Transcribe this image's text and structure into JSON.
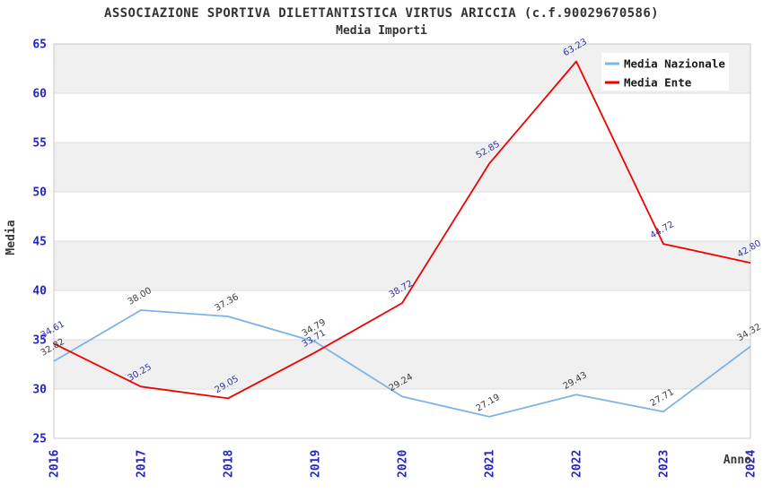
{
  "title": "ASSOCIAZIONE SPORTIVA DILETTANTISTICA VIRTUS ARICCIA (c.f.90029670586)",
  "subtitle": "Media Importi",
  "colors": {
    "background": "#FFFFFF",
    "band": "#F0F0F0",
    "grid": "#DEDEDE",
    "border": "#C9C9C9",
    "tick_label": "#2424C8",
    "axis_title": "#3A3A3A",
    "title_text": "#333333",
    "legend_text": "#1A1A1A",
    "legend_background": "#FFFFFF"
  },
  "chart_data": {
    "type": "line",
    "title": "ASSOCIAZIONE SPORTIVA DILETTANTISTICA VIRTUS ARICCIA (c.f.90029670586)",
    "subtitle": "Media Importi",
    "x": [
      "2016",
      "2017",
      "2018",
      "2019",
      "2020",
      "2021",
      "2022",
      "2023",
      "2024"
    ],
    "xlabel": "Anno",
    "ylabel": "Media",
    "ylim": [
      25,
      65
    ],
    "ytick_step": 5,
    "yticks": [
      "25",
      "30",
      "35",
      "40",
      "45",
      "50",
      "55",
      "60",
      "65"
    ],
    "grid": true,
    "banded_background": true,
    "legend_position": "top-right",
    "series": [
      {
        "name": "Media Nazionale",
        "color": "#7FB3E6",
        "label_color": "#3C3C3C",
        "values": [
          32.82,
          38.0,
          37.36,
          34.79,
          29.24,
          27.19,
          29.43,
          27.71,
          34.32
        ],
        "value_labels": [
          "32.82",
          "38.00",
          "37.36",
          "34.79",
          "29.24",
          "27.19",
          "29.43",
          "27.71",
          "34.32"
        ]
      },
      {
        "name": "Media Ente",
        "color": "#EE0202",
        "label_color": "#3232A8",
        "values": [
          34.61,
          30.25,
          29.05,
          33.71,
          38.72,
          52.85,
          63.23,
          44.72,
          42.8
        ],
        "value_labels": [
          "34.61",
          "30.25",
          "29.05",
          "33.71",
          "38.72",
          "52.85",
          "63.23",
          "44.72",
          "42.80"
        ]
      }
    ]
  }
}
